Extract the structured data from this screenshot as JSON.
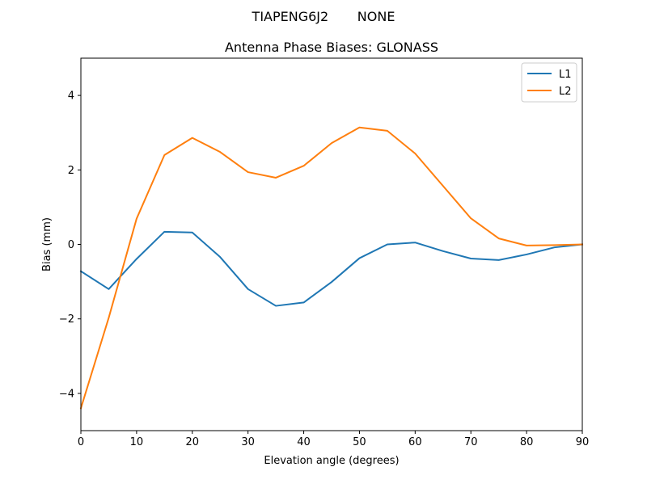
{
  "figure": {
    "suptitle": "TIAPENG6J2       NONE",
    "background": "#ffffff"
  },
  "chart_data": {
    "type": "line",
    "suptitle": "TIAPENG6J2       NONE",
    "title": "Antenna Phase Biases: GLONASS",
    "xlabel": "Elevation angle (degrees)",
    "ylabel": "Bias (mm)",
    "xlim": [
      0,
      90
    ],
    "ylim": [
      -5,
      5
    ],
    "xticks": [
      0,
      10,
      20,
      30,
      40,
      50,
      60,
      70,
      80,
      90
    ],
    "yticks": [
      -4,
      -2,
      0,
      2,
      4
    ],
    "ytick_labels": [
      "−4",
      "−2",
      "0",
      "2",
      "4"
    ],
    "grid": false,
    "legend_position": "upper right",
    "x": [
      0,
      5,
      10,
      15,
      20,
      25,
      30,
      35,
      40,
      45,
      50,
      55,
      60,
      65,
      70,
      75,
      80,
      85,
      90
    ],
    "series": [
      {
        "name": "L1",
        "color": "#1f77b4",
        "values": [
          -0.72,
          -1.2,
          -0.39,
          0.34,
          0.32,
          -0.34,
          -1.2,
          -1.65,
          -1.56,
          -1.01,
          -0.37,
          0.0,
          0.05,
          -0.18,
          -0.38,
          -0.42,
          -0.27,
          -0.08,
          0.0
        ]
      },
      {
        "name": "L2",
        "color": "#ff7f0e",
        "values": [
          -4.4,
          -1.97,
          0.69,
          2.4,
          2.86,
          2.48,
          1.94,
          1.79,
          2.11,
          2.72,
          3.14,
          3.05,
          2.44,
          1.57,
          0.7,
          0.16,
          -0.03,
          -0.02,
          0.0
        ]
      }
    ]
  }
}
